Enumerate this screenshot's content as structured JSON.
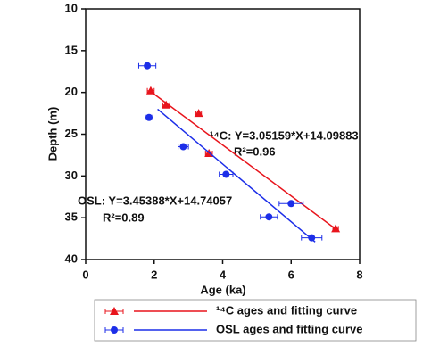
{
  "chart_data": {
    "type": "scatter",
    "xlabel": "Age (ka)",
    "ylabel": "Depth (m)",
    "xlim": [
      0,
      8
    ],
    "xticks": [
      0,
      2,
      4,
      6,
      8
    ],
    "ylim": [
      10,
      40
    ],
    "yticks": [
      10,
      15,
      20,
      25,
      30,
      35,
      40
    ],
    "y_inverted": true,
    "series": [
      {
        "name": "¹⁴C ages and fitting curve",
        "color": "#e8141c",
        "marker": "triangle",
        "x": [
          1.9,
          2.35,
          3.3,
          3.6,
          7.3
        ],
        "values": [
          19.8,
          21.5,
          22.5,
          27.3,
          36.3
        ],
        "xerr": [
          0.1,
          0.1,
          0.08,
          0.1,
          0.08
        ],
        "fit": {
          "x": [
            1.9,
            7.35
          ],
          "y": [
            19.9,
            36.5
          ]
        }
      },
      {
        "name": "OSL ages and fitting curve",
        "color": "#1c2ee8",
        "marker": "circle",
        "x": [
          1.8,
          1.85,
          2.85,
          4.1,
          6.0,
          5.35,
          6.6
        ],
        "values": [
          16.8,
          23.0,
          26.5,
          29.8,
          33.3,
          34.9,
          37.4
        ],
        "xerr": [
          0.25,
          0.08,
          0.15,
          0.2,
          0.35,
          0.25,
          0.3
        ],
        "fit": {
          "x": [
            2.1,
            6.7
          ],
          "y": [
            22.0,
            37.9
          ]
        }
      }
    ],
    "annotations": [
      "¹⁴C: Y=3.05159*X+14.09883",
      "R²=0.96",
      "OSL: Y=3.45388*X+14.74057",
      "R²=0.89"
    ]
  }
}
